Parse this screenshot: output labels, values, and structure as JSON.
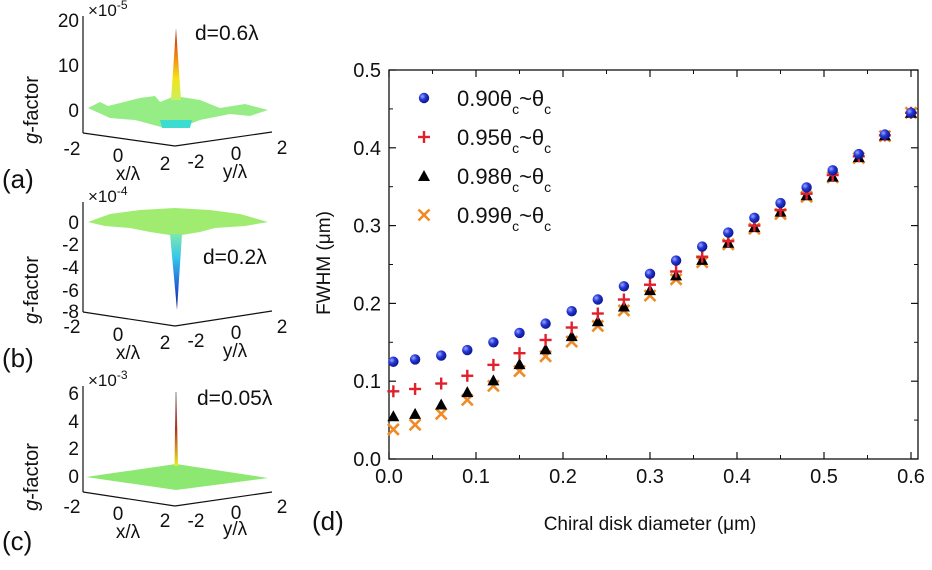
{
  "panels_3d": [
    {
      "label": "(a)",
      "zlabel_italic": "g",
      "zlabel_rest": "-factor",
      "multiplier_base": "×10",
      "multiplier_exp": "-5",
      "zticks": [
        "20",
        "10",
        "0"
      ],
      "xticks": [
        "-2",
        "0",
        "2"
      ],
      "yticks": [
        "-2",
        "0",
        "2"
      ],
      "xlabel": "x/λ",
      "ylabel": "y/λ",
      "annotation": "d=0.6λ",
      "peak_direction": "up"
    },
    {
      "label": "(b)",
      "zlabel_italic": "g",
      "zlabel_rest": "-factor",
      "multiplier_base": "×10",
      "multiplier_exp": "-4",
      "zticks": [
        "0",
        "-2",
        "-4",
        "-6",
        "-8"
      ],
      "xticks": [
        "-2",
        "0",
        "2"
      ],
      "yticks": [
        "-2",
        "0",
        "2"
      ],
      "xlabel": "x/λ",
      "ylabel": "y/λ",
      "annotation": "d=0.2λ",
      "peak_direction": "down"
    },
    {
      "label": "(c)",
      "zlabel_italic": "g",
      "zlabel_rest": "-factor",
      "multiplier_base": "×10",
      "multiplier_exp": "-3",
      "zticks": [
        "6",
        "4",
        "2",
        "0"
      ],
      "xticks": [
        "-2",
        "0",
        "2"
      ],
      "yticks": [
        "-2",
        "0",
        "2"
      ],
      "xlabel": "x/λ",
      "ylabel": "y/λ",
      "annotation": "d=0.05λ",
      "peak_direction": "up"
    }
  ],
  "chart_data": {
    "type": "scatter",
    "panel_label": "(d)",
    "title": "",
    "xlabel": "Chiral disk diameter (μm)",
    "ylabel": "FWHM (μm)",
    "xlim": [
      0.0,
      0.61
    ],
    "ylim": [
      0.0,
      0.5
    ],
    "xticks": [
      "0.0",
      "0.1",
      "0.2",
      "0.3",
      "0.4",
      "0.5",
      "0.6"
    ],
    "yticks": [
      "0.0",
      "0.1",
      "0.2",
      "0.3",
      "0.4",
      "0.5"
    ],
    "grid": false,
    "legend_position": "top-left",
    "x": [
      0.005,
      0.03,
      0.06,
      0.09,
      0.12,
      0.15,
      0.18,
      0.21,
      0.24,
      0.27,
      0.3,
      0.33,
      0.36,
      0.39,
      0.42,
      0.45,
      0.48,
      0.51,
      0.54,
      0.57,
      0.6
    ],
    "series": [
      {
        "name": "0.90θc~θc",
        "legend_main": "0.90θ",
        "legend_sub1": "c",
        "legend_mid": "~θ",
        "legend_sub2": "c",
        "marker": "circle",
        "color": "#1f2fd6",
        "values": [
          0.125,
          0.128,
          0.133,
          0.14,
          0.15,
          0.162,
          0.174,
          0.19,
          0.205,
          0.222,
          0.238,
          0.255,
          0.273,
          0.291,
          0.31,
          0.329,
          0.349,
          0.371,
          0.392,
          0.417,
          0.445
        ]
      },
      {
        "name": "0.95θc~θc",
        "legend_main": "0.95θ",
        "legend_sub1": "c",
        "legend_mid": "~θ",
        "legend_sub2": "c",
        "marker": "plus",
        "color": "#e0212b",
        "values": [
          0.087,
          0.09,
          0.097,
          0.107,
          0.121,
          0.136,
          0.153,
          0.169,
          0.187,
          0.205,
          0.224,
          0.241,
          0.26,
          0.28,
          0.3,
          0.32,
          0.341,
          0.365,
          0.389,
          0.416,
          0.445
        ]
      },
      {
        "name": "0.98θc~θc",
        "legend_main": "0.98θ",
        "legend_sub1": "c",
        "legend_mid": "~θ",
        "legend_sub2": "c",
        "marker": "triangle",
        "color": "#000000",
        "values": [
          0.055,
          0.058,
          0.07,
          0.086,
          0.101,
          0.122,
          0.141,
          0.158,
          0.177,
          0.196,
          0.217,
          0.236,
          0.256,
          0.278,
          0.298,
          0.318,
          0.339,
          0.363,
          0.388,
          0.416,
          0.445
        ]
      },
      {
        "name": "0.99θc~θc",
        "legend_main": "0.99θ",
        "legend_sub1": "c",
        "legend_mid": "~θ",
        "legend_sub2": "c",
        "marker": "x",
        "color": "#f08a24",
        "values": [
          0.038,
          0.044,
          0.058,
          0.076,
          0.094,
          0.113,
          0.132,
          0.151,
          0.171,
          0.191,
          0.21,
          0.231,
          0.253,
          0.276,
          0.296,
          0.315,
          0.337,
          0.362,
          0.387,
          0.415,
          0.445
        ]
      }
    ]
  }
}
